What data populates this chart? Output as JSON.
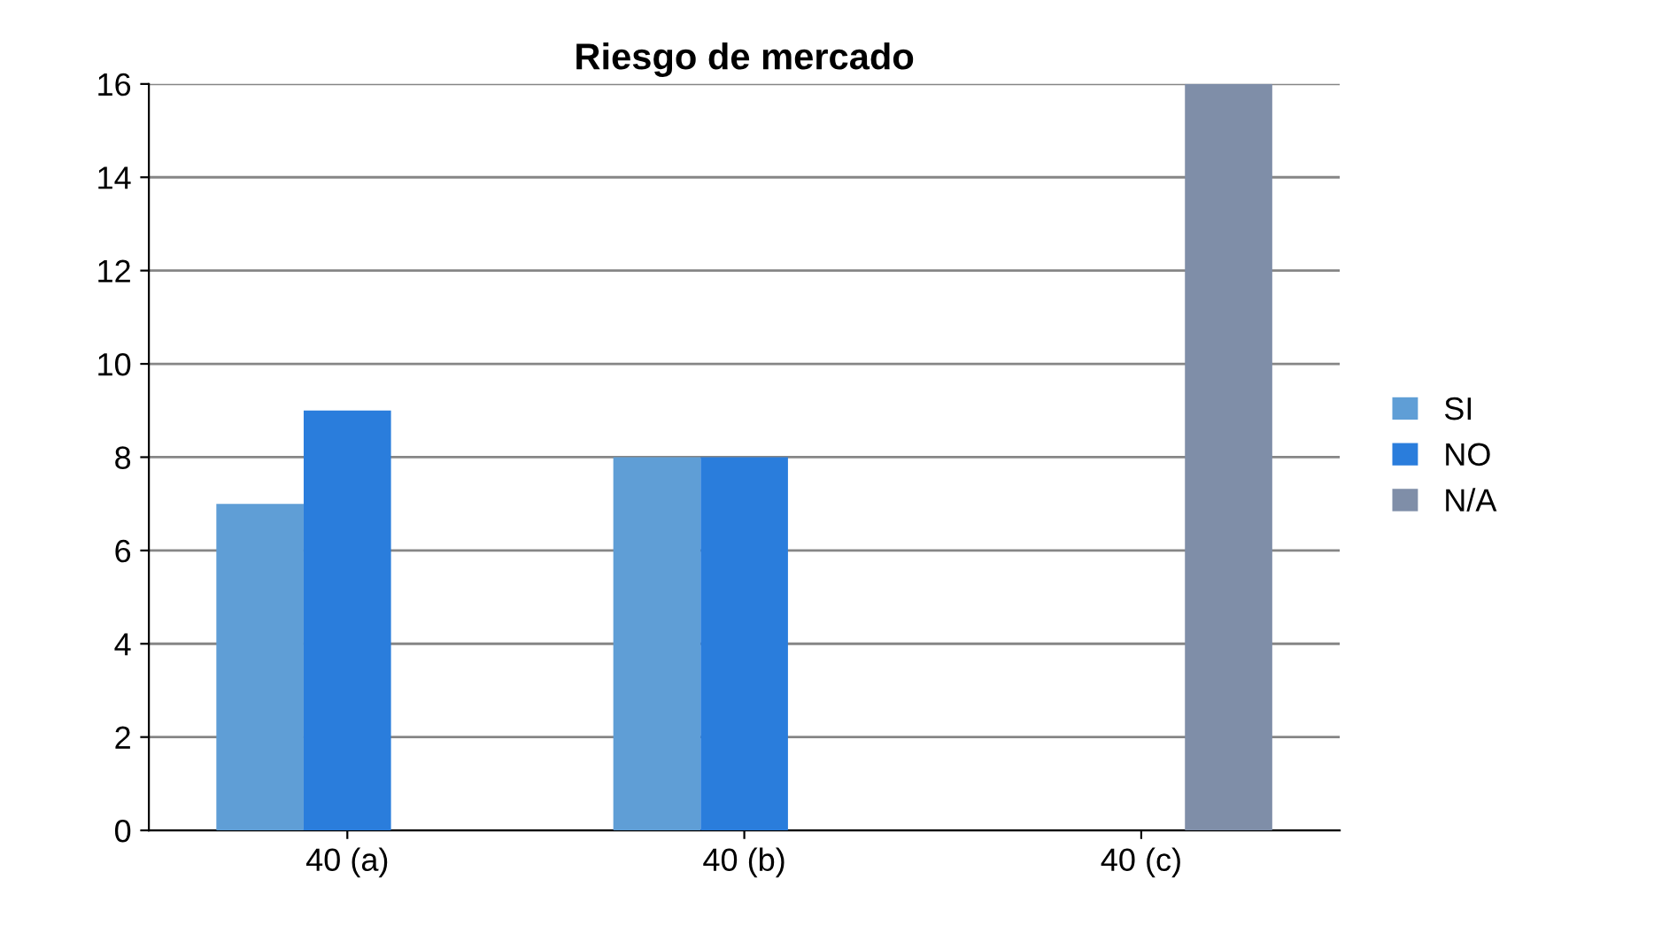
{
  "chart_data": {
    "type": "bar",
    "title": "Riesgo de mercado",
    "categories": [
      "40 (a)",
      "40 (b)",
      "40 (c)"
    ],
    "series": [
      {
        "name": "SI",
        "color": "#5f9ed6",
        "values": [
          7,
          8,
          0
        ]
      },
      {
        "name": "NO",
        "color": "#2a7ddc",
        "values": [
          9,
          8,
          0
        ]
      },
      {
        "name": "N/A",
        "color": "#7f8ea8",
        "values": [
          0,
          0,
          16
        ]
      }
    ],
    "ylim": [
      0,
      16
    ],
    "yticks": [
      0,
      2,
      4,
      6,
      8,
      10,
      12,
      14,
      16
    ],
    "grid": "y",
    "legend": "right"
  }
}
